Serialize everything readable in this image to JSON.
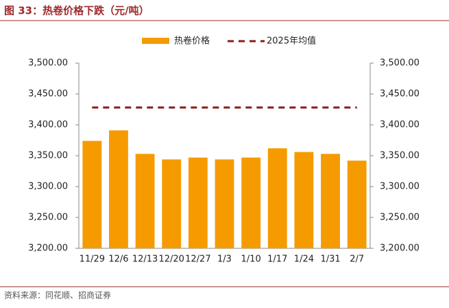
{
  "chart_data": {
    "type": "bar",
    "title": "图 33：热卷价格下跌（元/吨）",
    "source": "资料来源：同花顺、招商证券",
    "categories": [
      "11/29",
      "12/6",
      "12/13",
      "12/20",
      "12/27",
      "1/3",
      "1/10",
      "1/17",
      "1/24",
      "1/31",
      "2/7"
    ],
    "series": [
      {
        "name": "热卷价格",
        "type": "bar",
        "color": "#f59b00",
        "values": [
          3374,
          3391,
          3353,
          3344,
          3347,
          3344,
          3347,
          3362,
          3356,
          3353,
          3342
        ]
      },
      {
        "name": "2025年均值",
        "type": "line",
        "color": "#8b1a1a",
        "values": [
          3428,
          3428,
          3428,
          3428,
          3428,
          3428,
          3428,
          3428,
          3428,
          3428,
          3428
        ]
      }
    ],
    "ylim": [
      3200,
      3500
    ],
    "yticks": [
      {
        "value": 3200,
        "label": "3,200.00"
      },
      {
        "value": 3250,
        "label": "3,250.00"
      },
      {
        "value": 3300,
        "label": "3,300.00"
      },
      {
        "value": 3350,
        "label": "3,350.00"
      },
      {
        "value": 3400,
        "label": "3,400.00"
      },
      {
        "value": 3450,
        "label": "3,450.00"
      },
      {
        "value": 3500,
        "label": "3,500.00"
      }
    ],
    "y2lim": [
      3200,
      3500
    ],
    "y2ticks": [
      {
        "value": 3200,
        "label": "3,200.00"
      },
      {
        "value": 3250,
        "label": "3,250.00"
      },
      {
        "value": 3300,
        "label": "3,300.00"
      },
      {
        "value": 3350,
        "label": "3,350.00"
      },
      {
        "value": 3400,
        "label": "3,400.00"
      },
      {
        "value": 3450,
        "label": "3,450.00"
      },
      {
        "value": 3500,
        "label": "3,500.00"
      }
    ],
    "grid": false
  }
}
